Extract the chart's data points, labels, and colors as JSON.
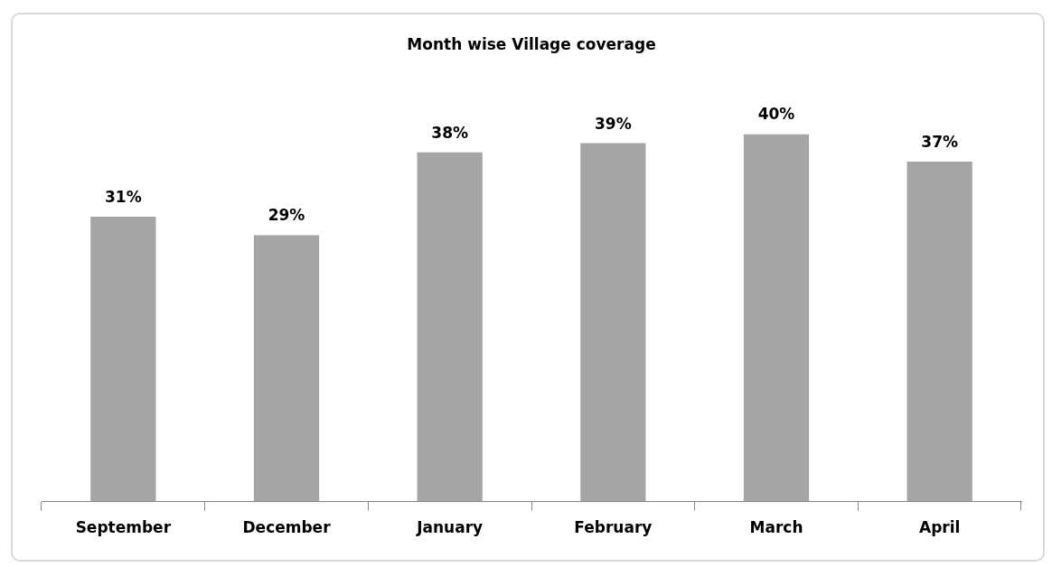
{
  "chart_data": {
    "type": "bar",
    "title": "Month wise Village coverage",
    "categories": [
      "September",
      "December",
      "January",
      "February",
      "March",
      "April"
    ],
    "values": [
      31,
      29,
      38,
      39,
      40,
      37
    ],
    "value_labels": [
      "31%",
      "29%",
      "38%",
      "39%",
      "40%",
      "37%"
    ],
    "color": "#a5a5a5",
    "tick_labels": "x",
    "grid": false,
    "legend": false
  }
}
